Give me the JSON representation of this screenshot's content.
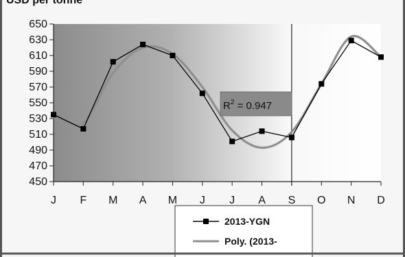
{
  "chart_data": {
    "type": "line",
    "unit_label": "USD per tonne",
    "categories": [
      "J",
      "F",
      "M",
      "A",
      "M",
      "J",
      "J",
      "A",
      "S",
      "O",
      "N",
      "D"
    ],
    "ylim": [
      450,
      650
    ],
    "yticks": [
      650,
      630,
      610,
      590,
      570,
      550,
      530,
      510,
      490,
      470,
      450
    ],
    "series": [
      {
        "name": "2013-YGN",
        "color": "#000000",
        "marker": "square",
        "values": [
          535,
          517,
          602,
          624,
          610,
          562,
          501,
          514,
          506,
          574,
          629,
          608
        ]
      },
      {
        "name": "Poly. (2013-",
        "color": "#8f8f8f",
        "style": "smooth trendline",
        "values": [
          531,
          525,
          588,
          620,
          612,
          570,
          515,
          493,
          513,
          574,
          634,
          608
        ]
      }
    ],
    "annotation": {
      "r2_prefix": "R",
      "r2_sup": "2",
      "r2_rest": " = 0.947"
    },
    "vertical_marker_category_index": 8,
    "background": "gradient: dark grey at January fading to white around September",
    "legend_position": "bottom"
  }
}
